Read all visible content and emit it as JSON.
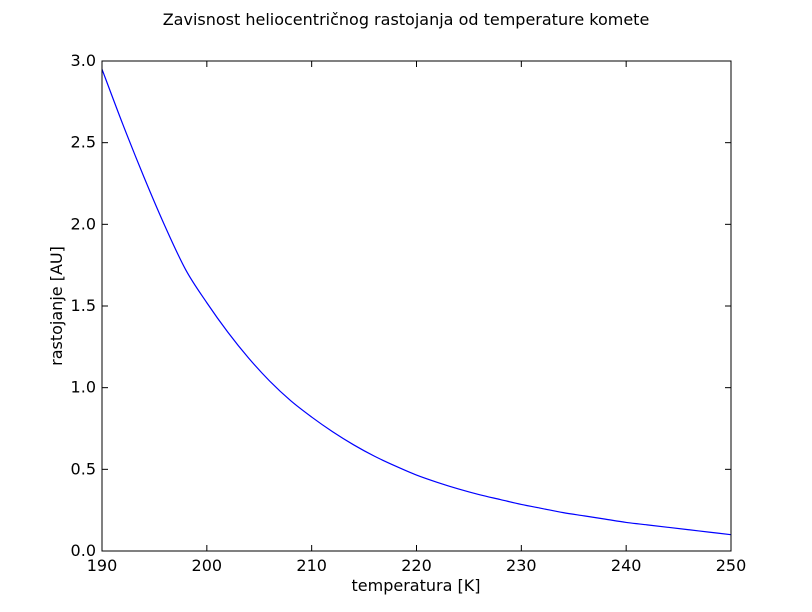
{
  "chart_data": {
    "type": "line",
    "title": "Zavisnost heliocentričnog rastojanja od temperature komete",
    "xlabel": "temperatura [K]",
    "ylabel": "rastojanje [AU]",
    "xlim": [
      190,
      250
    ],
    "ylim": [
      0.0,
      3.0
    ],
    "xticks": [
      190,
      200,
      210,
      220,
      230,
      240,
      250
    ],
    "xtick_labels": [
      "190",
      "200",
      "210",
      "220",
      "230",
      "240",
      "250"
    ],
    "yticks": [
      0.0,
      0.5,
      1.0,
      1.5,
      2.0,
      2.5,
      3.0
    ],
    "ytick_labels": [
      "0.0",
      "0.5",
      "1.0",
      "1.5",
      "2.0",
      "2.5",
      "3.0"
    ],
    "grid": false,
    "series": [
      {
        "color": "#0000ff",
        "x": [
          190,
          192,
          194,
          196,
          198,
          200,
          202,
          204,
          206,
          208,
          210,
          212,
          214,
          216,
          218,
          220,
          222,
          224,
          226,
          228,
          230,
          232,
          234,
          236,
          238,
          240,
          242,
          244,
          246,
          248,
          250
        ],
        "y": [
          2.95,
          2.61,
          2.29,
          1.99,
          1.72,
          1.52,
          1.34,
          1.18,
          1.04,
          0.92,
          0.82,
          0.73,
          0.65,
          0.58,
          0.52,
          0.465,
          0.42,
          0.38,
          0.345,
          0.315,
          0.285,
          0.26,
          0.235,
          0.215,
          0.195,
          0.175,
          0.16,
          0.145,
          0.13,
          0.115,
          0.1
        ]
      }
    ]
  }
}
